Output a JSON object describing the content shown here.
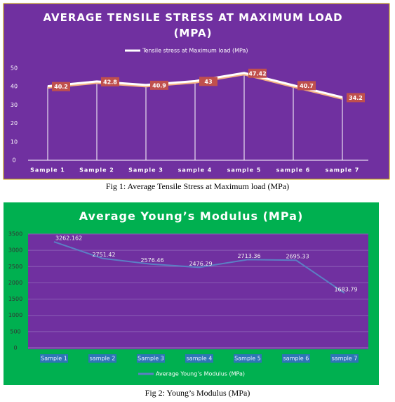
{
  "chart_data": [
    {
      "type": "line",
      "title": "AVERAGE TENSILE STRESS AT MAXIMUM   LOAD (MPA)",
      "categories": [
        "Sample 1",
        "Sample 2",
        "Sample 3",
        "sample 4",
        "sample 5",
        "sample 6",
        "sample 7"
      ],
      "series": [
        {
          "name": "Tensile stress at Maximum  load (MPa)",
          "color": "#ffffff",
          "values": [
            40.2,
            42.8,
            40.9,
            43,
            47.42,
            40.7,
            34.2
          ]
        }
      ],
      "ylim": [
        0,
        50
      ],
      "yticks": [
        0,
        10,
        20,
        30,
        40,
        50
      ],
      "grid": false,
      "legend": "top"
    },
    {
      "type": "line",
      "title": "Average Young’s  Modulus (MPa)",
      "categories": [
        "Sample 1",
        "sample 2",
        "Sample 3",
        "sample 4",
        "Sample 5",
        "sample 6",
        "sample 7"
      ],
      "series": [
        {
          "name": "Average Young’s  Modulus (MPa)",
          "color": "#5b7fc4",
          "values": [
            3262.162,
            2751.42,
            2576.46,
            2476.29,
            2713.36,
            2695.33,
            1683.79
          ]
        }
      ],
      "ylim": [
        0,
        3500
      ],
      "yticks": [
        0,
        500,
        1000,
        1500,
        2000,
        2500,
        3000,
        3500
      ],
      "grid": true,
      "legend": "bottom"
    }
  ],
  "captions": [
    "Fig 1: Average Tensile Stress at Maximum load (MPa)",
    "Fig 2: Young’s Modulus (MPa)"
  ]
}
